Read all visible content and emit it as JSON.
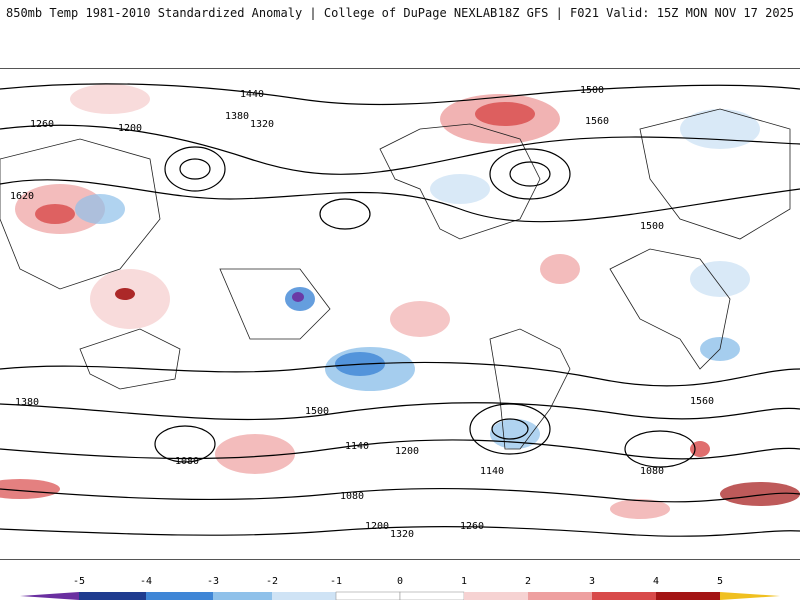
{
  "header": {
    "left_title": "850mb Temp 1981-2010 Standardized Anomaly | College of DuPage NEXLAB",
    "right_title": "18Z GFS | F021 Valid: 15Z MON NOV 17 2025"
  },
  "map": {
    "projection": "equirectangular global",
    "variables": [
      "850mb temperature standardized anomaly (shaded)",
      "geopotential height contours (black)"
    ],
    "contour_labels": [
      "1440",
      "1380",
      "1260",
      "1200",
      "1320",
      "1500",
      "1560",
      "1620",
      "1140",
      "1080"
    ],
    "anomaly_colors": {
      "neg5": "#6a2fa0",
      "neg4": "#1f3c8f",
      "neg3": "#3f86d6",
      "neg2": "#8fc1ea",
      "neg1": "#cfe3f5",
      "zero": "#ffffff",
      "pos1": "#f6d2d2",
      "pos2": "#eea0a0",
      "pos3": "#d84a4a",
      "pos4": "#a31414",
      "pos5": "#6b0000",
      "pos6": "#f0c020"
    }
  },
  "colorbar": {
    "tick_labels": [
      "-5",
      "-4",
      "-3",
      "-2",
      "-1",
      "0",
      "1",
      "2",
      "3",
      "4",
      "5"
    ]
  }
}
